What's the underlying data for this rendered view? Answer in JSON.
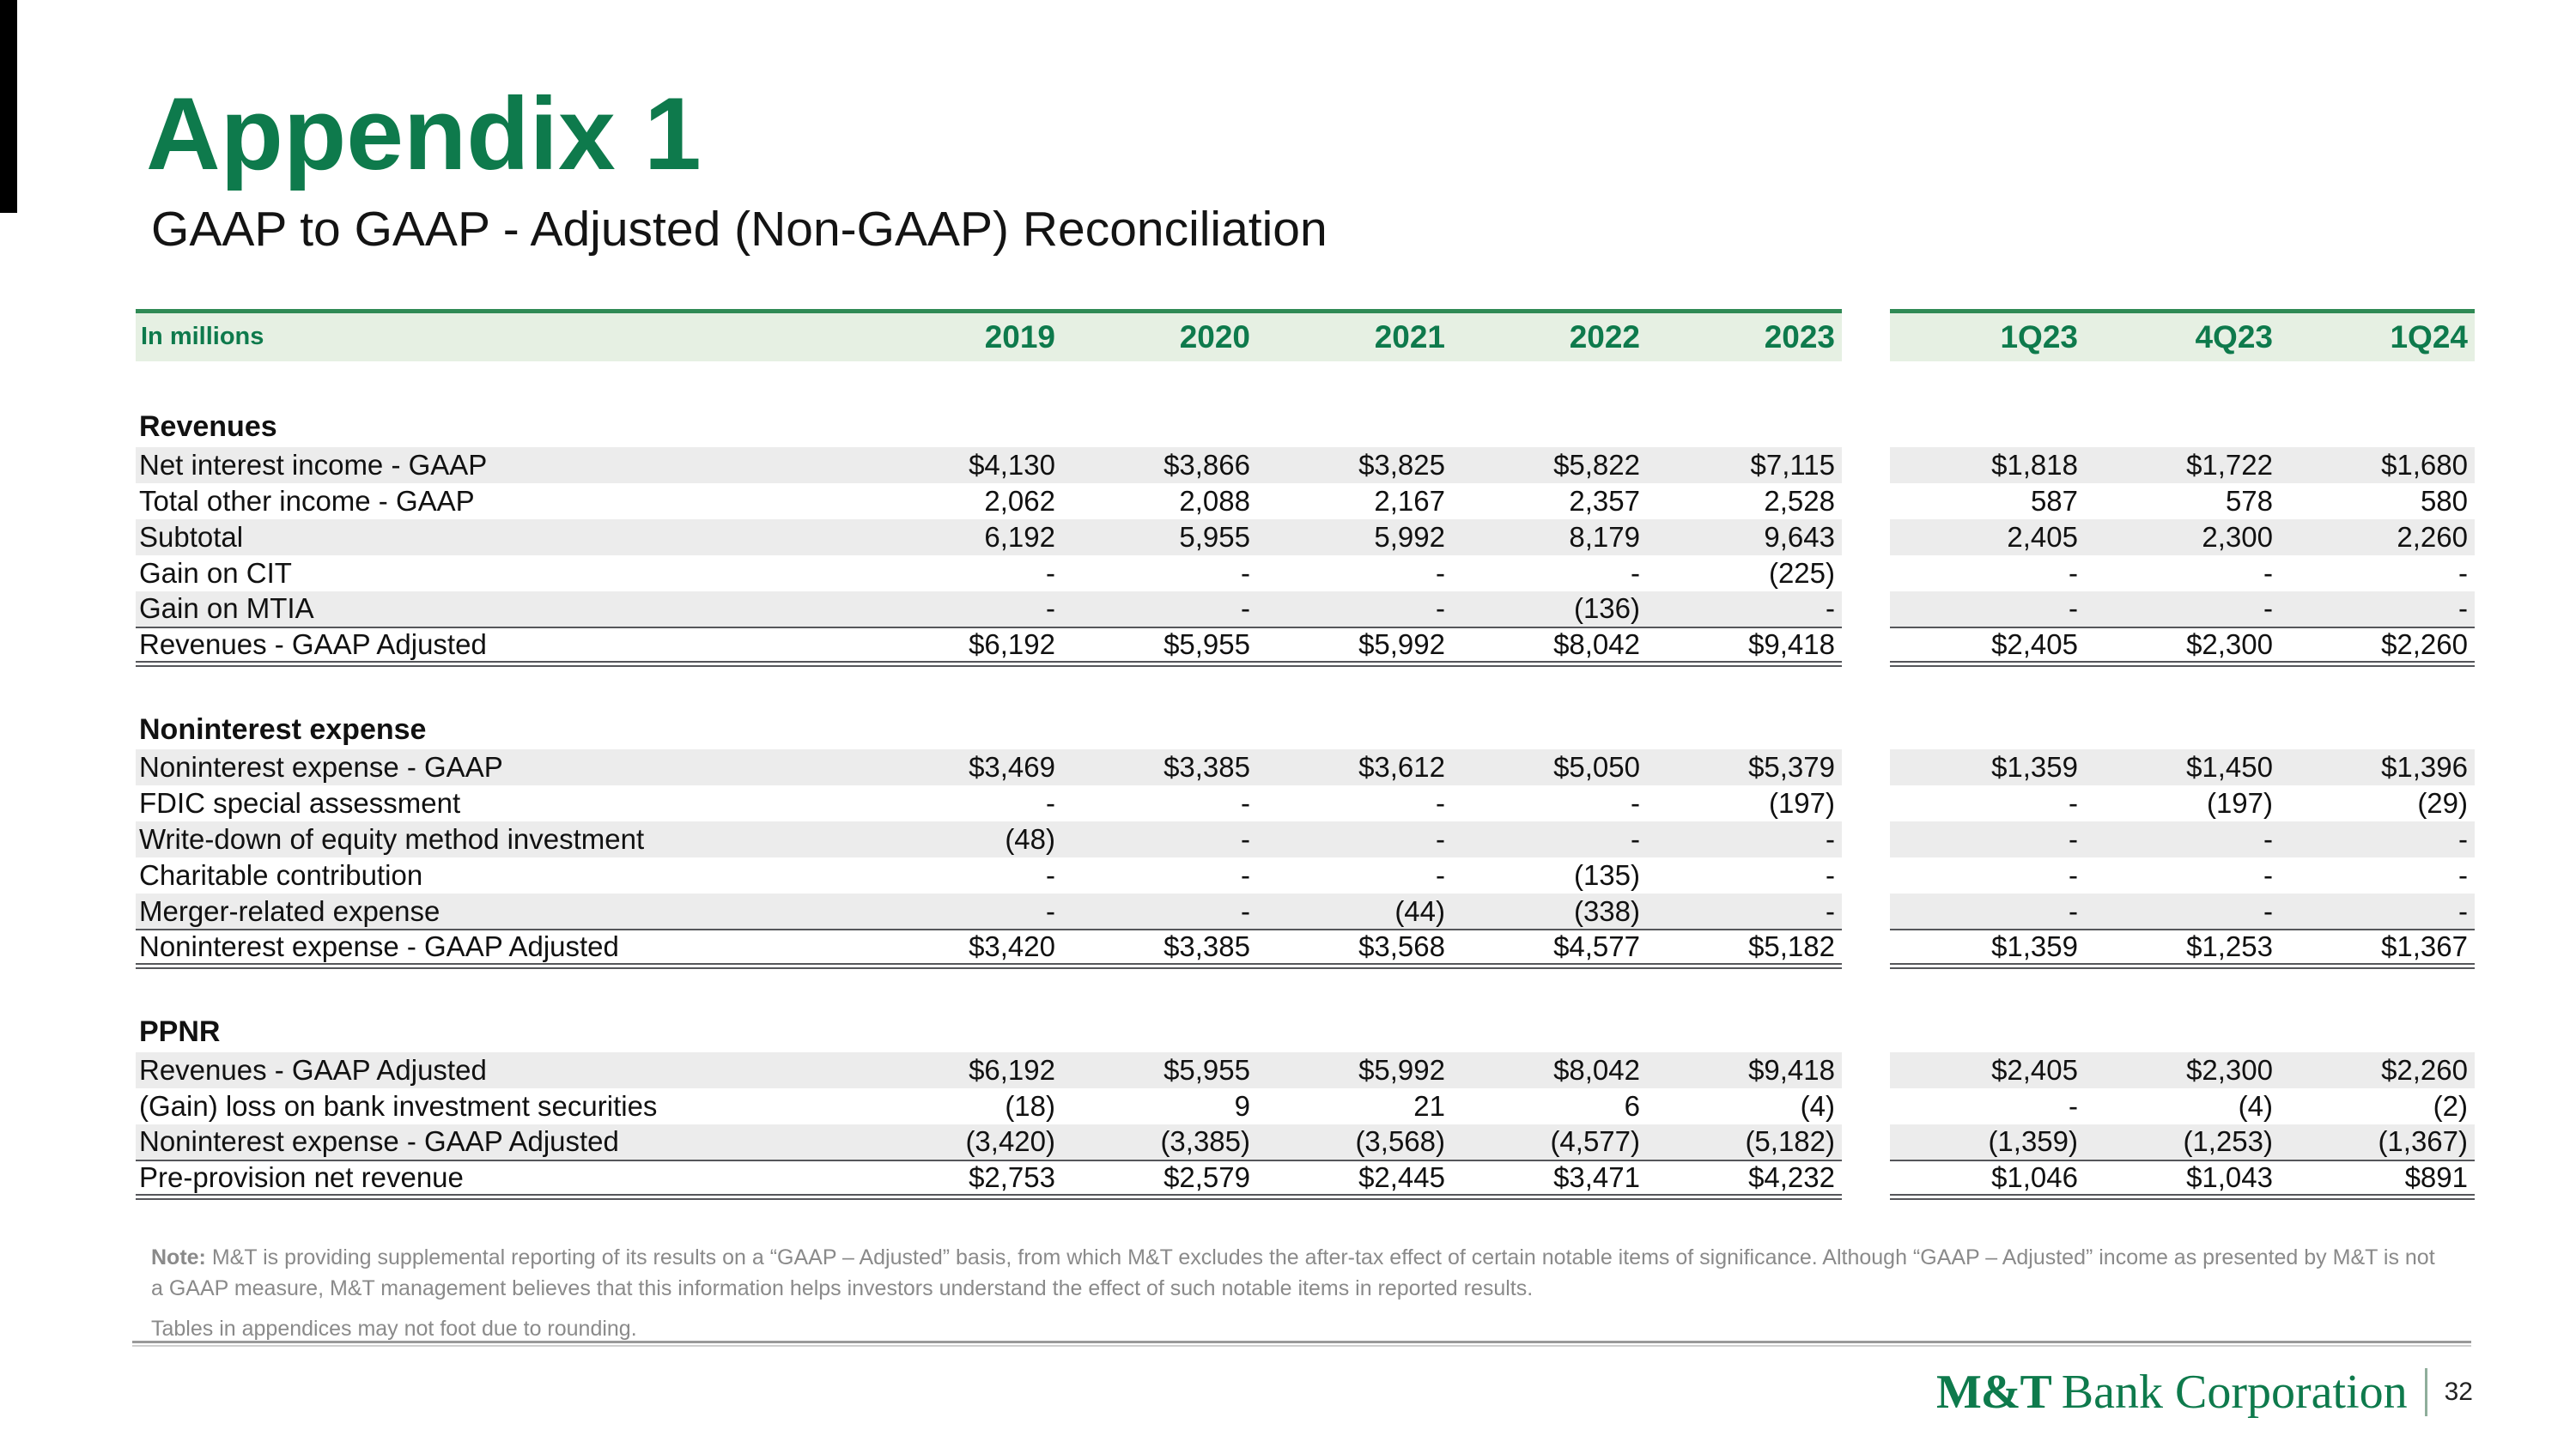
{
  "page": {
    "title": "Appendix 1",
    "subtitle": "GAAP to GAAP - Adjusted (Non-GAAP) Reconciliation",
    "page_number": "32"
  },
  "colors": {
    "brand_green": "#0e7a4c",
    "header_band_bg": "#e6f0e3",
    "header_band_border": "#2f8a55",
    "row_shade": "#ececec",
    "note_gray": "#8a8a8a",
    "total_rule": "#55565a"
  },
  "table": {
    "unit_label": "In millions",
    "gap_after": 5,
    "columns": [
      "2019",
      "2020",
      "2021",
      "2022",
      "2023",
      "1Q23",
      "4Q23",
      "1Q24"
    ],
    "sections": [
      {
        "name": "Revenues",
        "rows": [
          {
            "label": "Net interest income - GAAP",
            "values": [
              "$4,130",
              "$3,866",
              "$3,825",
              "$5,822",
              "$7,115",
              "$1,818",
              "$1,722",
              "$1,680"
            ],
            "shaded": true,
            "total": false
          },
          {
            "label": "Total other income - GAAP",
            "values": [
              "2,062",
              "2,088",
              "2,167",
              "2,357",
              "2,528",
              "587",
              "578",
              "580"
            ],
            "shaded": false,
            "total": false
          },
          {
            "label": "Subtotal",
            "values": [
              "6,192",
              "5,955",
              "5,992",
              "8,179",
              "9,643",
              "2,405",
              "2,300",
              "2,260"
            ],
            "shaded": true,
            "total": false
          },
          {
            "label": "Gain on CIT",
            "values": [
              "-",
              "-",
              "-",
              "-",
              "(225)",
              "-",
              "-",
              "-"
            ],
            "shaded": false,
            "total": false
          },
          {
            "label": "Gain on MTIA",
            "values": [
              "-",
              "-",
              "-",
              "(136)",
              "-",
              "-",
              "-",
              "-"
            ],
            "shaded": true,
            "total": false
          },
          {
            "label": "Revenues - GAAP Adjusted",
            "values": [
              "$6,192",
              "$5,955",
              "$5,992",
              "$8,042",
              "$9,418",
              "$2,405",
              "$2,300",
              "$2,260"
            ],
            "shaded": false,
            "total": true
          }
        ]
      },
      {
        "name": "Noninterest expense",
        "rows": [
          {
            "label": "Noninterest expense - GAAP",
            "values": [
              "$3,469",
              "$3,385",
              "$3,612",
              "$5,050",
              "$5,379",
              "$1,359",
              "$1,450",
              "$1,396"
            ],
            "shaded": true,
            "total": false
          },
          {
            "label": "FDIC special assessment",
            "values": [
              "-",
              "-",
              "-",
              "-",
              "(197)",
              "-",
              "(197)",
              "(29)"
            ],
            "shaded": false,
            "total": false
          },
          {
            "label": "Write-down of equity method investment",
            "values": [
              "(48)",
              "-",
              "-",
              "-",
              "-",
              "-",
              "-",
              "-"
            ],
            "shaded": true,
            "total": false
          },
          {
            "label": "Charitable contribution",
            "values": [
              "-",
              "-",
              "-",
              "(135)",
              "-",
              "-",
              "-",
              "-"
            ],
            "shaded": false,
            "total": false
          },
          {
            "label": "Merger-related expense",
            "values": [
              "-",
              "-",
              "(44)",
              "(338)",
              "-",
              "-",
              "-",
              "-"
            ],
            "shaded": true,
            "total": false
          },
          {
            "label": "Noninterest expense - GAAP Adjusted",
            "values": [
              "$3,420",
              "$3,385",
              "$3,568",
              "$4,577",
              "$5,182",
              "$1,359",
              "$1,253",
              "$1,367"
            ],
            "shaded": false,
            "total": true
          }
        ]
      },
      {
        "name": "PPNR",
        "rows": [
          {
            "label": "Revenues - GAAP Adjusted",
            "values": [
              "$6,192",
              "$5,955",
              "$5,992",
              "$8,042",
              "$9,418",
              "$2,405",
              "$2,300",
              "$2,260"
            ],
            "shaded": true,
            "total": false
          },
          {
            "label": "(Gain) loss on bank investment securities",
            "values": [
              "(18)",
              "9",
              "21",
              "6",
              "(4)",
              "-",
              "(4)",
              "(2)"
            ],
            "shaded": false,
            "total": false
          },
          {
            "label": "Noninterest expense - GAAP Adjusted",
            "values": [
              "(3,420)",
              "(3,385)",
              "(3,568)",
              "(4,577)",
              "(5,182)",
              "(1,359)",
              "(1,253)",
              "(1,367)"
            ],
            "shaded": true,
            "total": false
          },
          {
            "label": "Pre-provision net revenue",
            "values": [
              "$2,753",
              "$2,579",
              "$2,445",
              "$3,471",
              "$4,232",
              "$1,046",
              "$1,043",
              "$891"
            ],
            "shaded": false,
            "total": true
          }
        ]
      }
    ]
  },
  "notes": {
    "note_label": "Note:",
    "note_body": "M&T is providing supplemental reporting of its results on a “GAAP – Adjusted” basis, from which M&T excludes the after-tax effect of certain notable items of significance. Although “GAAP – Adjusted” income as presented by M&T is not a GAAP measure, M&T management believes that this information helps investors understand the effect of such notable items in reported results.",
    "rounding_note": "Tables in appendices may not foot due to rounding."
  },
  "footer": {
    "logo_bold": "M&T",
    "logo_rest": "Bank Corporation"
  }
}
